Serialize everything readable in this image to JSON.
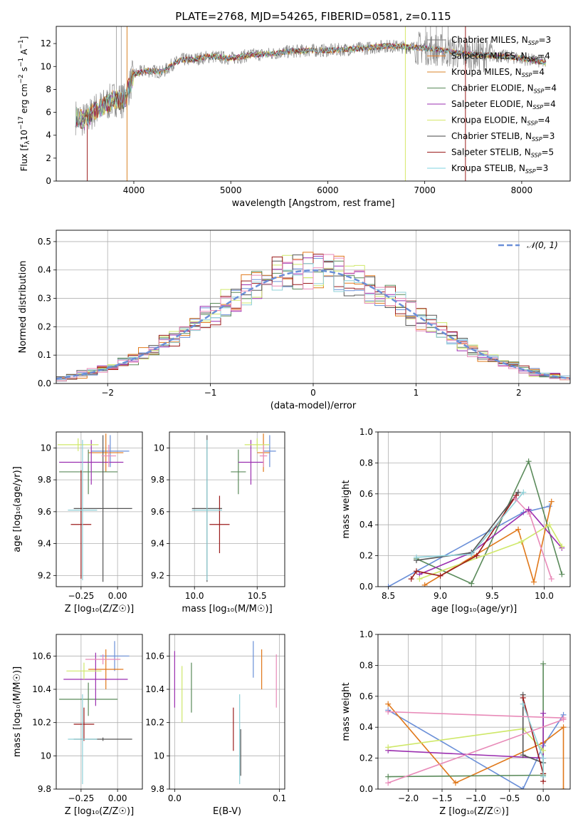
{
  "figure": {
    "title": "PLATE=2768, MJD=54265, FIBERID=0581, z=0.115"
  },
  "model_colors": [
    "#777777",
    "#e8812f",
    "#d9852a",
    "#5a8a5a",
    "#9b2fb0",
    "#d6e86a",
    "#444444",
    "#9b1c1c",
    "#7fd3e0"
  ],
  "panel_colors": {
    "blue": "#6a8fd8",
    "orange": "#e0781a",
    "green": "#5a8a5a",
    "purple": "#9b2fb0",
    "yellow": "#cfe86a",
    "grey": "#555555",
    "darkred": "#9b1c1c",
    "cyan": "#8fd0d8",
    "pink": "#e88ab8"
  },
  "chart_data": [
    {
      "id": "spectrum",
      "type": "line",
      "xlabel": "wavelength [Angstrom, rest frame]",
      "ylabel": "Flux [f_λ10^-17 erg cm^-2 s^-1 A^-1]",
      "xlim": [
        3200,
        8500
      ],
      "ylim": [
        0,
        13.5
      ],
      "xticks": [
        4000,
        5000,
        6000,
        7000,
        8000
      ],
      "yticks": [
        0,
        2,
        4,
        6,
        8,
        10,
        12
      ],
      "grid": false,
      "legend_position": "top-right",
      "legend": [
        {
          "label": "Chabrier MILES, N",
          "sub": "SSP",
          "tail": "=3"
        },
        {
          "label": "Salpeter MILES, N",
          "sub": "SSP",
          "tail": "=4"
        },
        {
          "label": "Kroupa MILES, N",
          "sub": "SSP",
          "tail": "=4"
        },
        {
          "label": "Chabrier ELODIE, N",
          "sub": "SSP",
          "tail": "=4"
        },
        {
          "label": "Salpeter ELODIE, N",
          "sub": "SSP",
          "tail": "=4"
        },
        {
          "label": "Kroupa ELODIE, N",
          "sub": "SSP",
          "tail": "=4"
        },
        {
          "label": "Chabrier STELIB, N",
          "sub": "SSP",
          "tail": "=3"
        },
        {
          "label": "Salpeter STELIB, N",
          "sub": "SSP",
          "tail": "=5"
        },
        {
          "label": "Kroupa STELIB, N",
          "sub": "SSP",
          "tail": "=3"
        }
      ],
      "continuum": {
        "x": [
          3400,
          3500,
          3600,
          3700,
          3800,
          3900,
          4000,
          4100,
          4200,
          4300,
          4400,
          4500,
          4600,
          4800,
          5000,
          5200,
          5400,
          5600,
          5800,
          6000,
          6200,
          6400,
          6600,
          6800,
          7000,
          7200,
          7400,
          7600,
          7800,
          8000,
          8200,
          8250
        ],
        "y": [
          5.6,
          5.3,
          6.2,
          6.6,
          7.2,
          7.0,
          9.3,
          9.6,
          9.6,
          9.5,
          10.2,
          10.6,
          10.6,
          10.9,
          10.7,
          11.0,
          11.1,
          11.3,
          11.4,
          11.4,
          11.5,
          11.6,
          11.8,
          11.7,
          11.6,
          11.4,
          11.1,
          11.0,
          10.9,
          10.7,
          10.4,
          10.3
        ]
      },
      "vertical_spikes": [
        3520,
        3930,
        6800,
        7420
      ]
    },
    {
      "id": "residuals",
      "type": "step",
      "xlabel": "(data-model)/error",
      "ylabel": "Normed distribution",
      "xlim": [
        -2.5,
        2.5
      ],
      "ylim": [
        0,
        0.54
      ],
      "xticks": [
        -2,
        -1,
        0,
        1,
        2
      ],
      "yticks": [
        0,
        0.1,
        0.2,
        0.3,
        0.4,
        0.5
      ],
      "grid": true,
      "legend_position": "top-right",
      "legend": [
        {
          "label": "𝒩(0, 1)"
        }
      ],
      "bin_width": 0.1
    },
    {
      "id": "age-vs-Z",
      "type": "errorbar",
      "xlabel": "Z [log₁₀(Z/Z☉)]",
      "ylabel": "age  [log₁₀(age/yr)]",
      "xlim": [
        -0.42,
        0.17
      ],
      "ylim": [
        9.13,
        10.1
      ],
      "xticks": [
        -0.25,
        0.0
      ],
      "xtick_labels": [
        "−0.25",
        "0.00"
      ],
      "yticks": [
        9.2,
        9.4,
        9.6,
        9.8,
        10.0
      ],
      "grid": true,
      "points": [
        {
          "color": "blue",
          "x": -0.05,
          "y": 9.98,
          "xerr": 0.13,
          "yerr": 0.1
        },
        {
          "color": "orange",
          "x": -0.08,
          "y": 9.97,
          "xerr": 0.12,
          "yerr": 0.12
        },
        {
          "color": "green",
          "x": -0.2,
          "y": 9.85,
          "xerr": 0.2,
          "yerr": 0.14
        },
        {
          "color": "purple",
          "x": -0.18,
          "y": 9.91,
          "xerr": 0.22,
          "yerr": 0.14
        },
        {
          "color": "yellow",
          "x": -0.27,
          "y": 10.02,
          "xerr": 0.14,
          "yerr": 0.04
        },
        {
          "color": "grey",
          "x": -0.1,
          "y": 9.62,
          "xerr": 0.2,
          "yerr": 0.46
        },
        {
          "color": "darkred",
          "x": -0.25,
          "y": 9.52,
          "xerr": 0.07,
          "yerr": 0.34
        },
        {
          "color": "cyan",
          "x": -0.24,
          "y": 9.61,
          "xerr": 0.1,
          "yerr": 0.44
        },
        {
          "color": "pink",
          "x": -0.06,
          "y": 9.95,
          "xerr": 0.05,
          "yerr": 0.07
        }
      ]
    },
    {
      "id": "age-vs-mass",
      "type": "errorbar",
      "xlabel": "mass [log₁₀(M/M☉)]",
      "ylabel": "",
      "xlim": [
        9.8,
        10.72
      ],
      "ylim": [
        9.13,
        10.1
      ],
      "xticks": [
        10.0,
        10.5
      ],
      "xtick_labels": [
        "10.0",
        "10.5"
      ],
      "yticks": [
        9.2,
        9.4,
        9.6,
        9.8,
        10.0
      ],
      "grid": true,
      "points": [
        {
          "color": "blue",
          "x": 10.6,
          "y": 9.98,
          "xerr": 0.05,
          "yerr": 0.1
        },
        {
          "color": "orange",
          "x": 10.55,
          "y": 9.97,
          "xerr": 0.05,
          "yerr": 0.12
        },
        {
          "color": "green",
          "x": 10.35,
          "y": 9.85,
          "xerr": 0.06,
          "yerr": 0.14
        },
        {
          "color": "purple",
          "x": 10.45,
          "y": 9.91,
          "xerr": 0.1,
          "yerr": 0.14
        },
        {
          "color": "yellow",
          "x": 10.5,
          "y": 10.02,
          "xerr": 0.1,
          "yerr": 0.04
        },
        {
          "color": "grey",
          "x": 10.1,
          "y": 9.62,
          "xerr": 0.12,
          "yerr": 0.46
        },
        {
          "color": "darkred",
          "x": 10.2,
          "y": 9.52,
          "xerr": 0.08,
          "yerr": 0.18
        },
        {
          "color": "cyan",
          "x": 10.1,
          "y": 9.61,
          "xerr": 0.12,
          "yerr": 0.44
        },
        {
          "color": "pink",
          "x": 10.55,
          "y": 9.95,
          "xerr": 0.03,
          "yerr": 0.07
        }
      ]
    },
    {
      "id": "weight-vs-age",
      "type": "line",
      "xlabel": "age  [log₁₀(age/yr)]",
      "ylabel": "mass weight",
      "xlim": [
        8.4,
        10.25
      ],
      "ylim": [
        0,
        1.0
      ],
      "xticks": [
        8.5,
        9.0,
        9.5,
        10.0
      ],
      "xtick_labels": [
        "8.5",
        "9.0",
        "9.5",
        "10.0"
      ],
      "yticks": [
        0,
        0.2,
        0.4,
        0.6,
        0.8,
        1.0
      ],
      "ytick_labels": [
        "0.0",
        "0.2",
        "0.4",
        "0.6",
        "0.8",
        "1.0"
      ],
      "grid": true,
      "series": [
        {
          "color": "blue",
          "x": [
            8.5,
            9.8,
            10.05
          ],
          "y": [
            0.0,
            0.48,
            0.52
          ]
        },
        {
          "color": "orange",
          "x": [
            8.85,
            9.75,
            9.9,
            10.07
          ],
          "y": [
            0.01,
            0.37,
            0.03,
            0.55
          ]
        },
        {
          "color": "green",
          "x": [
            8.77,
            9.3,
            9.85,
            10.17
          ],
          "y": [
            0.18,
            0.02,
            0.81,
            0.08
          ]
        },
        {
          "color": "purple",
          "x": [
            8.8,
            9.3,
            9.85,
            10.17
          ],
          "y": [
            0.08,
            0.22,
            0.5,
            0.25
          ]
        },
        {
          "color": "yellow",
          "x": [
            8.8,
            9.78,
            10.05,
            10.17
          ],
          "y": [
            0.05,
            0.29,
            0.4,
            0.26
          ]
        },
        {
          "color": "grey",
          "x": [
            8.77,
            9.3,
            9.75
          ],
          "y": [
            0.17,
            0.22,
            0.61
          ]
        },
        {
          "color": "darkred",
          "x": [
            8.72,
            8.77,
            9.0,
            9.35,
            9.73
          ],
          "y": [
            0.05,
            0.1,
            0.07,
            0.2,
            0.59
          ]
        },
        {
          "color": "cyan",
          "x": [
            8.77,
            9.3,
            9.8
          ],
          "y": [
            0.19,
            0.21,
            0.61
          ]
        },
        {
          "color": "pink",
          "x": [
            9.72,
            9.86,
            10.07
          ],
          "y": [
            0.57,
            0.47,
            0.05
          ]
        }
      ]
    },
    {
      "id": "mass-vs-Z",
      "type": "errorbar",
      "xlabel": "Z [log₁₀(Z/Z☉)]",
      "ylabel": "mass [log₁₀(M/M☉)]",
      "xlim": [
        -0.42,
        0.17
      ],
      "ylim": [
        9.8,
        10.73
      ],
      "xticks": [
        -0.25,
        0.0
      ],
      "xtick_labels": [
        "−0.25",
        "0.00"
      ],
      "yticks": [
        9.8,
        10.0,
        10.2,
        10.4,
        10.6
      ],
      "grid": true,
      "points": [
        {
          "color": "blue",
          "x": -0.02,
          "y": 10.6,
          "xerr": 0.1,
          "yerr": 0.09
        },
        {
          "color": "orange",
          "x": -0.08,
          "y": 10.52,
          "xerr": 0.12,
          "yerr": 0.12
        },
        {
          "color": "green",
          "x": -0.2,
          "y": 10.34,
          "xerr": 0.2,
          "yerr": 0.1
        },
        {
          "color": "purple",
          "x": -0.15,
          "y": 10.46,
          "xerr": 0.22,
          "yerr": 0.16
        },
        {
          "color": "yellow",
          "x": -0.23,
          "y": 10.51,
          "xerr": 0.12,
          "yerr": 0.05
        },
        {
          "color": "grey",
          "x": -0.1,
          "y": 10.1,
          "xerr": 0.2,
          "yerr": 0.01
        },
        {
          "color": "darkred",
          "x": -0.23,
          "y": 10.19,
          "xerr": 0.07,
          "yerr": 0.1
        },
        {
          "color": "cyan",
          "x": -0.24,
          "y": 10.1,
          "xerr": 0.1,
          "yerr": 0.27
        },
        {
          "color": "pink",
          "x": -0.1,
          "y": 10.58,
          "xerr": 0.12,
          "yerr": 0.03
        }
      ]
    },
    {
      "id": "mass-vs-ebv",
      "type": "errorbar",
      "xlabel": "E(B-V)",
      "ylabel": "",
      "xlim": [
        -0.005,
        0.105
      ],
      "ylim": [
        9.8,
        10.73
      ],
      "xticks": [
        0.0,
        0.1
      ],
      "xtick_labels": [
        "0.0",
        "0.1"
      ],
      "yticks": [
        9.8,
        10.0,
        10.2,
        10.4,
        10.6
      ],
      "grid": true,
      "points": [
        {
          "color": "blue",
          "x": 0.075,
          "y": 10.58,
          "xerr": 0,
          "yerr": 0.11
        },
        {
          "color": "orange",
          "x": 0.083,
          "y": 10.52,
          "xerr": 0,
          "yerr": 0.12
        },
        {
          "color": "green",
          "x": 0.016,
          "y": 10.41,
          "xerr": 0,
          "yerr": 0.15
        },
        {
          "color": "purple",
          "x": 0.0,
          "y": 10.46,
          "xerr": 0,
          "yerr": 0.17
        },
        {
          "color": "yellow",
          "x": 0.007,
          "y": 10.37,
          "xerr": 0,
          "yerr": 0.17
        },
        {
          "color": "grey",
          "x": 0.063,
          "y": 10.02,
          "xerr": 0,
          "yerr": 0.14
        },
        {
          "color": "darkred",
          "x": 0.056,
          "y": 10.16,
          "xerr": 0,
          "yerr": 0.13
        },
        {
          "color": "cyan",
          "x": 0.062,
          "y": 10.1,
          "xerr": 0,
          "yerr": 0.27
        },
        {
          "color": "pink",
          "x": 0.097,
          "y": 10.45,
          "xerr": 0,
          "yerr": 0.16
        }
      ]
    },
    {
      "id": "weight-vs-Z",
      "type": "line",
      "xlabel": "Z [log₁₀(Z/Z☉)]",
      "ylabel": "mass weight",
      "xlim": [
        -2.45,
        0.4
      ],
      "ylim": [
        0,
        1.0
      ],
      "xticks": [
        -2.0,
        -1.5,
        -1.0,
        -0.5,
        0.0
      ],
      "xtick_labels": [
        "−2.0",
        "−1.5",
        "−1.0",
        "−0.5",
        "0.0"
      ],
      "yticks": [
        0,
        0.2,
        0.4,
        0.6,
        0.8,
        1.0
      ],
      "ytick_labels": [
        "0.0",
        "0.2",
        "0.4",
        "0.6",
        "0.8",
        "1.0"
      ],
      "grid": true,
      "series": [
        {
          "color": "blue",
          "x": [
            -2.3,
            -0.3,
            0.0,
            0.3
          ],
          "y": [
            0.51,
            0.0,
            0.28,
            0.48
          ]
        },
        {
          "color": "orange",
          "x": [
            -2.3,
            -1.3,
            0.0,
            0.3,
            0.3
          ],
          "y": [
            0.55,
            0.04,
            0.3,
            0.4,
            0.0
          ]
        },
        {
          "color": "green",
          "x": [
            -2.3,
            -0.0,
            -0.0,
            0.0
          ],
          "y": [
            0.08,
            0.09,
            0.81,
            0.1
          ]
        },
        {
          "color": "purple",
          "x": [
            -2.3,
            -0.0,
            0.0
          ],
          "y": [
            0.25,
            0.2,
            0.49
          ]
        },
        {
          "color": "yellow",
          "x": [
            -2.3,
            -0.3,
            0.0
          ],
          "y": [
            0.27,
            0.39,
            0.25
          ]
        },
        {
          "color": "grey",
          "x": [
            -0.3,
            -0.3,
            0.0
          ],
          "y": [
            0.61,
            0.22,
            0.17
          ]
        },
        {
          "color": "darkred",
          "x": [
            -0.3,
            0.0,
            0.0
          ],
          "y": [
            0.59,
            0.1,
            0.05
          ]
        },
        {
          "color": "cyan",
          "x": [
            -0.3,
            -0.0,
            0.0
          ],
          "y": [
            0.55,
            0.2,
            0.08
          ]
        },
        {
          "color": "pink",
          "x": [
            -2.3,
            0.3,
            0.3,
            -2.3
          ],
          "y": [
            0.5,
            0.46,
            0.45,
            0.04
          ]
        }
      ]
    }
  ]
}
